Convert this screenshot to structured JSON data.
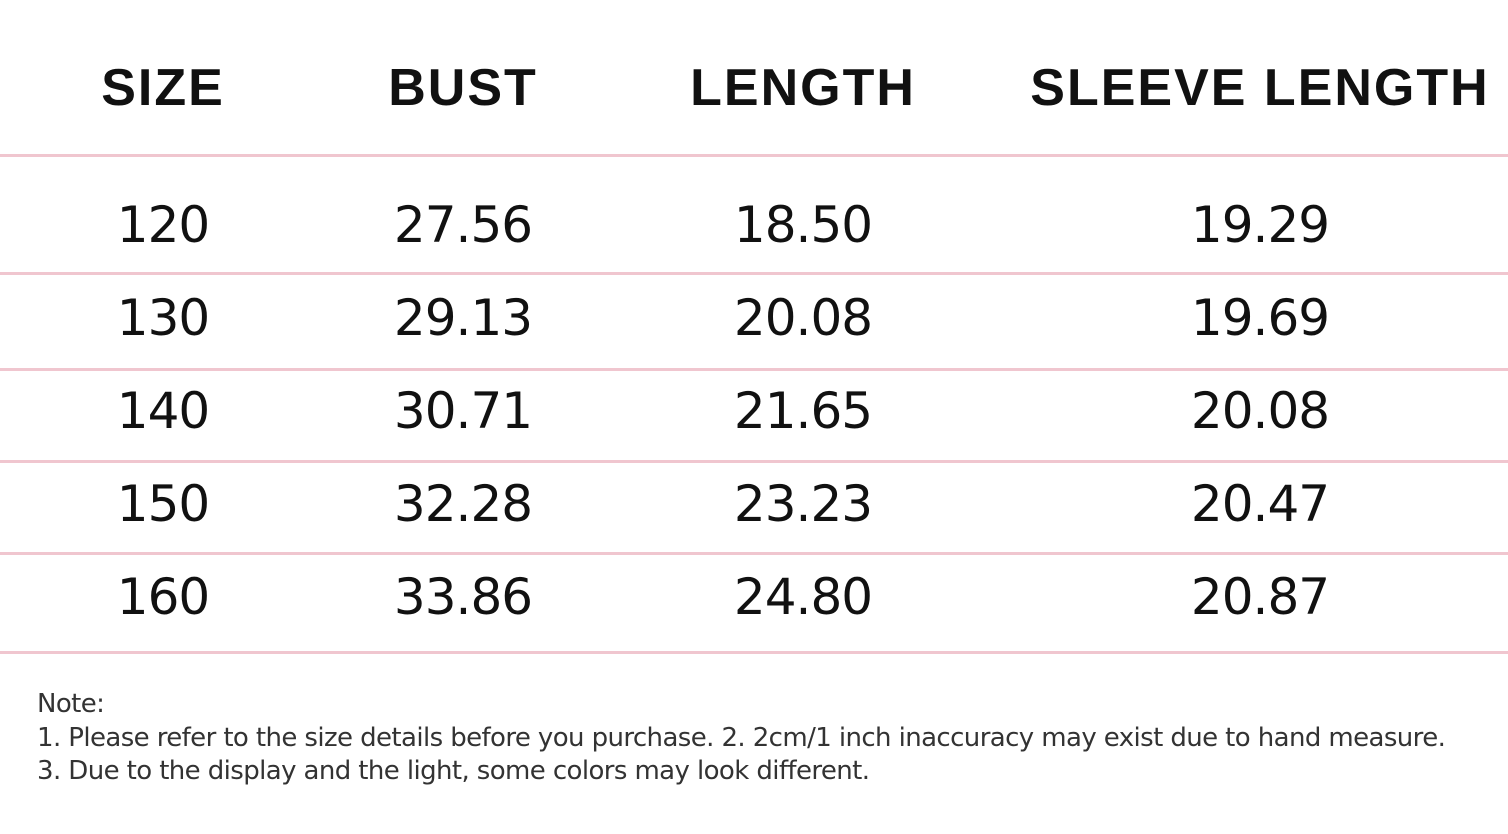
{
  "table": {
    "headers": [
      "SIZE",
      "BUST",
      "LENGTH",
      "SLEEVE LENGTH"
    ],
    "rows": [
      [
        "120",
        "27.56",
        "18.50",
        "19.29"
      ],
      [
        "130",
        "29.13",
        "20.08",
        "19.69"
      ],
      [
        "140",
        "30.71",
        "21.65",
        "20.08"
      ],
      [
        "150",
        "32.28",
        "23.23",
        "20.47"
      ],
      [
        "160",
        "33.86",
        "24.80",
        "20.87"
      ]
    ],
    "divider_color": "#f0c6cf"
  },
  "note": {
    "title": "Note:",
    "line1": "1. Please refer to the size details before you purchase. 2. 2cm/1 inch inaccuracy may exist due to hand measure.",
    "line2": "3. Due to the display and the light, some colors may look different."
  }
}
